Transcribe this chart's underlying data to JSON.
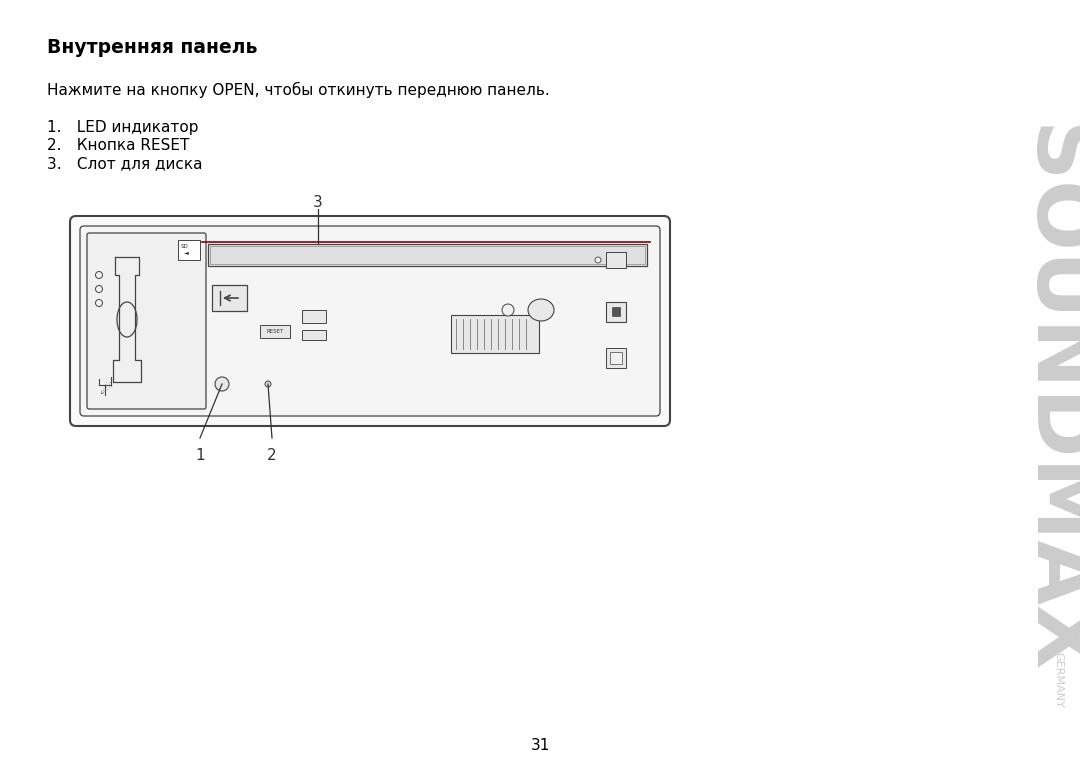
{
  "bg_color": "#ffffff",
  "title": "Внутренняя панель",
  "intro_text": "Нажмите на кнопку OPEN, чтобы откинуть переднюю панель.",
  "list_item1": "1. LED индикатор",
  "list_item2": "2. Кнопка RESET",
  "list_item3": "3. Слот для диска",
  "page_number": "31",
  "soundmax_text": "SOUNDMAX",
  "germany_text": "GERMANY",
  "soundmax_color": "#cccccc",
  "text_color": "#000000",
  "line_color": "#444444",
  "red_line_color": "#8B0000"
}
